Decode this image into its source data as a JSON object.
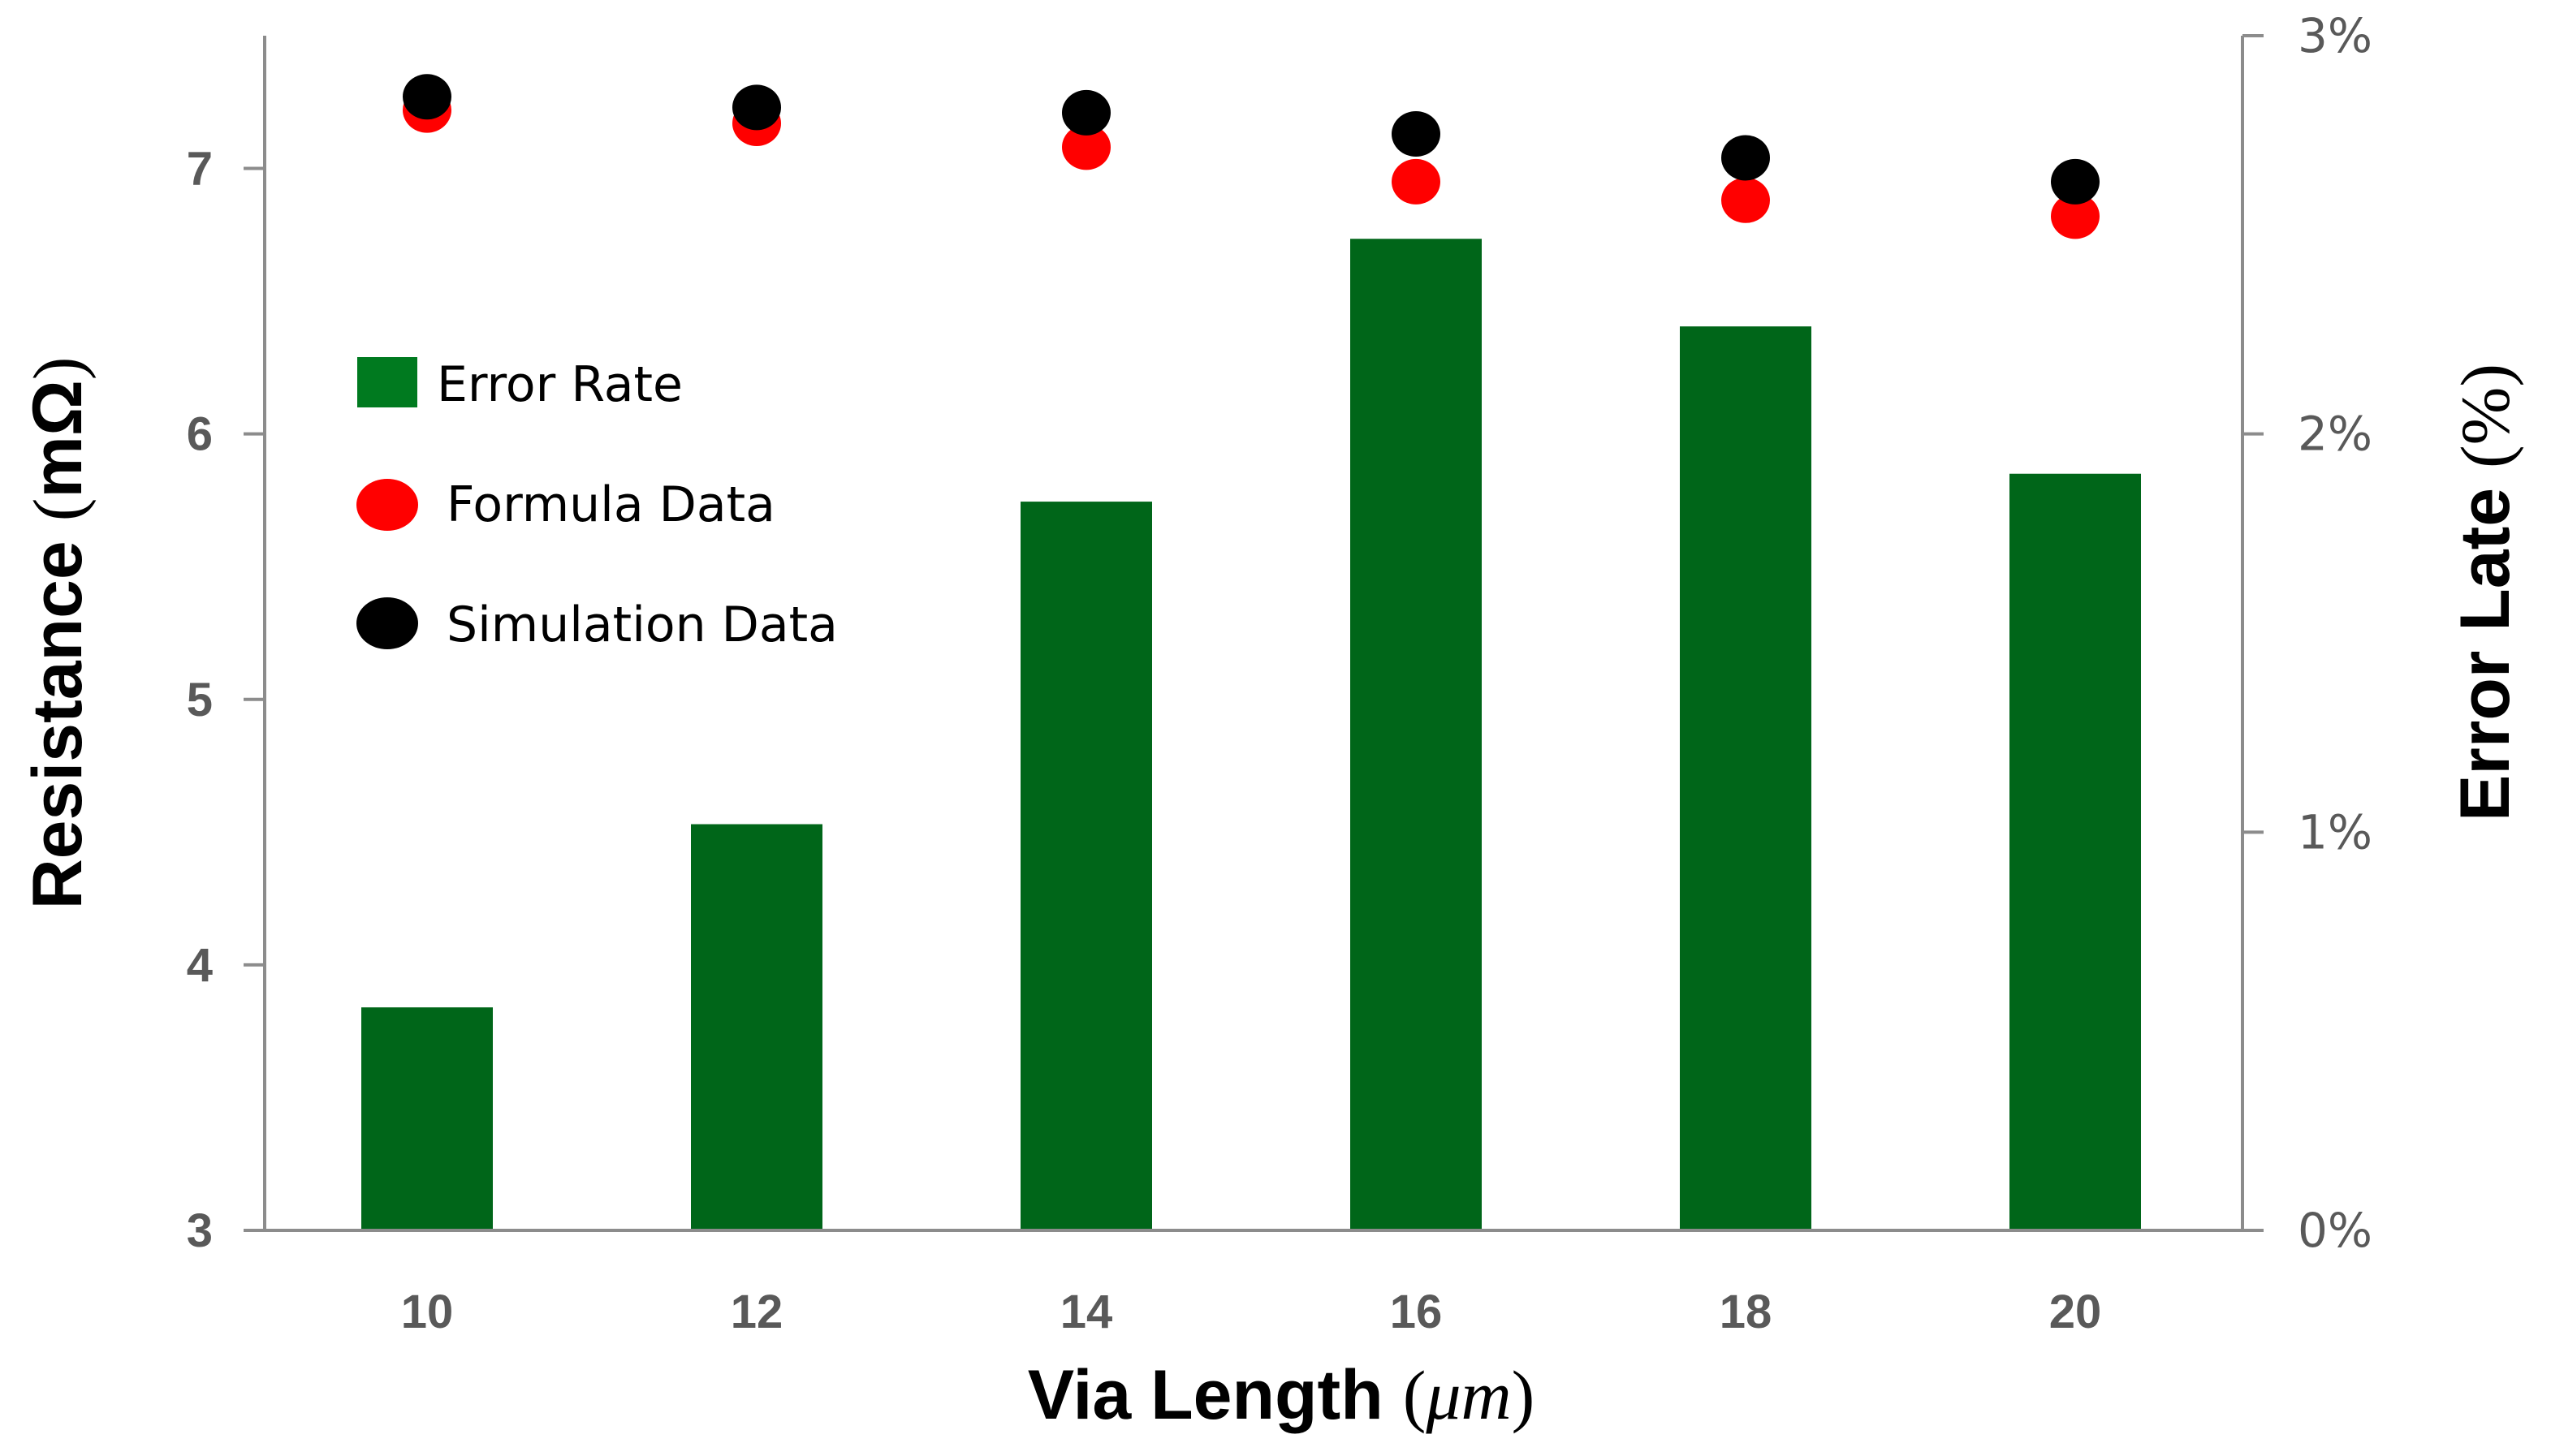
{
  "chart_data": {
    "type": "bar",
    "xlabel": {
      "main": "Via Length",
      "unit": "μm"
    },
    "ylabel_left": {
      "main": "Resistance",
      "unit": "mΩ"
    },
    "ylabel_right": {
      "main": "Error Late",
      "unit": "%"
    },
    "categories": [
      "10",
      "12",
      "14",
      "16",
      "18",
      "20"
    ],
    "y_left_range": [
      3,
      7.5
    ],
    "y_left_ticks": [
      "3",
      "4",
      "5",
      "6",
      "7"
    ],
    "y_right_range": [
      0,
      3
    ],
    "y_right_ticks": [
      "0%",
      "1%",
      "2%",
      "3%"
    ],
    "grid": false,
    "legend_position": "left",
    "series": [
      {
        "name": "Error Rate",
        "type": "bar",
        "axis": "right",
        "color": "#006619",
        "values": [
          0.56,
          1.02,
          1.83,
          2.49,
          2.27,
          1.9
        ]
      },
      {
        "name": "Formula Data",
        "type": "scatter",
        "axis": "left",
        "color": "#ff0000",
        "values": [
          7.22,
          7.17,
          7.08,
          6.95,
          6.88,
          6.82
        ]
      },
      {
        "name": "Simulation Data",
        "type": "scatter",
        "axis": "left",
        "color": "#000000",
        "values": [
          7.27,
          7.23,
          7.21,
          7.13,
          7.04,
          6.95
        ]
      }
    ]
  }
}
